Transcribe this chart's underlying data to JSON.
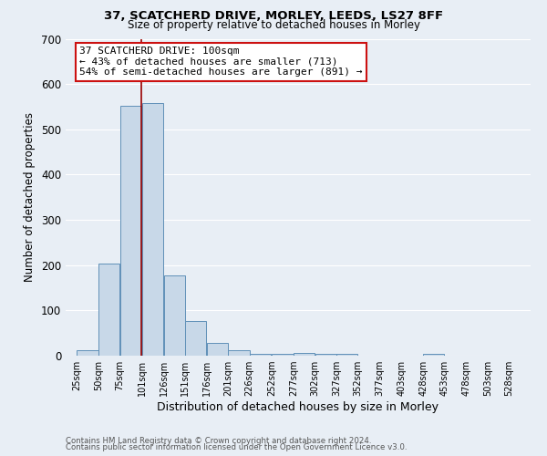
{
  "title": "37, SCATCHERD DRIVE, MORLEY, LEEDS, LS27 8FF",
  "subtitle": "Size of property relative to detached houses in Morley",
  "xlabel": "Distribution of detached houses by size in Morley",
  "ylabel": "Number of detached properties",
  "bar_left_edges": [
    25,
    50,
    75,
    101,
    126,
    151,
    176,
    201,
    226,
    252,
    277,
    302,
    327,
    352,
    377,
    403,
    428,
    453,
    478,
    503
  ],
  "bar_widths": [
    25,
    25,
    25,
    25,
    25,
    25,
    25,
    25,
    25,
    25,
    25,
    25,
    25,
    25,
    25,
    25,
    25,
    25,
    25,
    25
  ],
  "bar_heights": [
    12,
    204,
    552,
    558,
    178,
    76,
    29,
    12,
    4,
    5,
    6,
    5,
    5,
    0,
    0,
    0,
    5,
    0,
    0,
    0
  ],
  "bar_color": "#c8d8e8",
  "bar_edge_color": "#6090b8",
  "ylim": [
    0,
    700
  ],
  "yticks": [
    0,
    100,
    200,
    300,
    400,
    500,
    600,
    700
  ],
  "xtick_labels": [
    "25sqm",
    "50sqm",
    "75sqm",
    "101sqm",
    "126sqm",
    "151sqm",
    "176sqm",
    "201sqm",
    "226sqm",
    "252sqm",
    "277sqm",
    "302sqm",
    "327sqm",
    "352sqm",
    "377sqm",
    "403sqm",
    "428sqm",
    "453sqm",
    "478sqm",
    "503sqm",
    "528sqm"
  ],
  "xtick_positions": [
    25,
    50,
    75,
    101,
    126,
    151,
    176,
    201,
    226,
    252,
    277,
    302,
    327,
    352,
    377,
    403,
    428,
    453,
    478,
    503,
    528
  ],
  "vline_x": 100,
  "vline_color": "#990000",
  "annotation_line1": "37 SCATCHERD DRIVE: 100sqm",
  "annotation_line2": "← 43% of detached houses are smaller (713)",
  "annotation_line3": "54% of semi-detached houses are larger (891) →",
  "fig_bg_color": "#e8eef5",
  "axes_bg_color": "#e8eef5",
  "grid_color": "#ffffff",
  "footer_line1": "Contains HM Land Registry data © Crown copyright and database right 2024.",
  "footer_line2": "Contains public sector information licensed under the Open Government Licence v3.0."
}
